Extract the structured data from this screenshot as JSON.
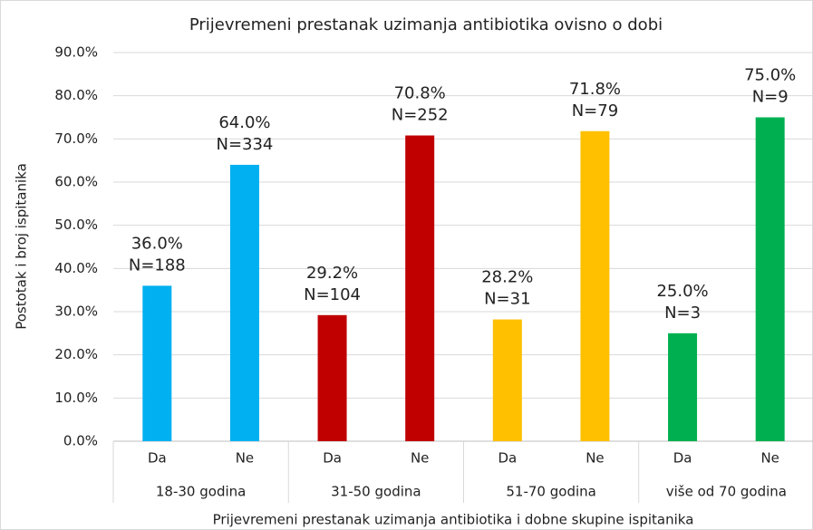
{
  "chart_data": {
    "type": "bar",
    "title": "Prijevremeni prestanak uzimanja antibiotika ovisno o dobi",
    "x_label": "Prijevremeni prestanak uzimanja antibiotika i dobne skupine ispitanika",
    "y_label": "Postotak i broj ispitanika",
    "categories": [
      "Da",
      "Ne",
      "Da",
      "Ne",
      "Da",
      "Ne",
      "Da",
      "Ne"
    ],
    "groups": [
      "18-30 godina",
      "31-50 godina",
      "51-70 godina",
      "više od 70 godina"
    ],
    "values": [
      36.0,
      64.0,
      29.2,
      70.8,
      28.2,
      71.8,
      25.0,
      75.0
    ],
    "value_labels": [
      "36.0%",
      "64.0%",
      "29.2%",
      "70.8%",
      "28.2%",
      "71.8%",
      "25.0%",
      "75.0%"
    ],
    "n_labels": [
      "N=188",
      "N=334",
      "N=104",
      "N=252",
      "N=31",
      "N=79",
      "N=3",
      "N=9"
    ],
    "colors": [
      "#00b0f0",
      "#00b0f0",
      "#c00000",
      "#c00000",
      "#ffc000",
      "#ffc000",
      "#00b050",
      "#00b050"
    ],
    "ylim": [
      0,
      90
    ],
    "yticks": [
      {
        "value": 0,
        "label": "0.0%"
      },
      {
        "value": 10,
        "label": "10.0%"
      },
      {
        "value": 20,
        "label": "20.0%"
      },
      {
        "value": 30,
        "label": "30.0%"
      },
      {
        "value": 40,
        "label": "40.0%"
      },
      {
        "value": 50,
        "label": "50.0%"
      },
      {
        "value": 60,
        "label": "60.0%"
      },
      {
        "value": 70,
        "label": "70.0%"
      },
      {
        "value": 80,
        "label": "80.0%"
      },
      {
        "value": 90,
        "label": "90.0%"
      }
    ],
    "grid": true
  }
}
